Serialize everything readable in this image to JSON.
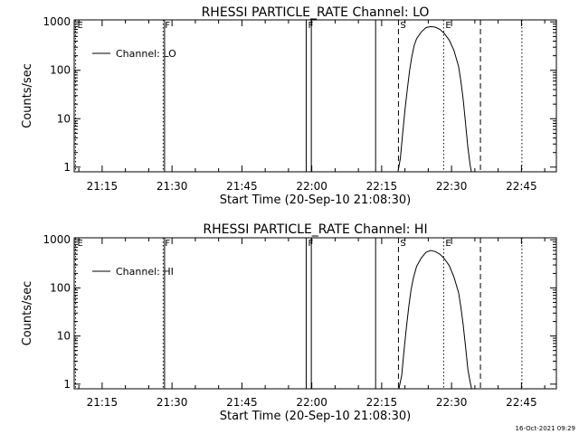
{
  "footer_timestamp": "16-Oct-2021 09:29",
  "chart_data": [
    {
      "type": "line",
      "title": "RHESSI PARTICLE_RATE Channel: LO",
      "xlabel": "Start Time (20-Sep-10 21:08:30)",
      "ylabel": "Counts/sec",
      "y_scale": "log",
      "x_range_min": [
        8.5,
        56.0
      ],
      "ylim": [
        0.8,
        1100
      ],
      "xticks": [
        {
          "v": 14.5,
          "label": "21:15"
        },
        {
          "v": 29.5,
          "label": "21:30"
        },
        {
          "v": 44.5,
          "label": "21:45"
        },
        {
          "v": 59.5,
          "label": "22:00"
        },
        {
          "v": 74.5,
          "label": "22:15"
        },
        {
          "v": 89.5,
          "label": "22:30"
        },
        {
          "v": 104.5,
          "label": "22:45"
        }
      ],
      "yticks": [
        {
          "v": 1,
          "label": "1"
        },
        {
          "v": 10,
          "label": "10"
        },
        {
          "v": 100,
          "label": "100"
        },
        {
          "v": 1000,
          "label": "1000"
        }
      ],
      "legend": {
        "label": "Channel: LO",
        "position": "top-left"
      },
      "markers": [
        {
          "v": 8.8,
          "style": "dotted",
          "label": "E"
        },
        {
          "v": 27.6,
          "style": "dotted",
          "label": "F"
        },
        {
          "v": 27.9,
          "style": "solid",
          "label": ""
        },
        {
          "v": 58.3,
          "style": "solid",
          "label": "F"
        },
        {
          "v": 59.4,
          "style": "solid",
          "label": ""
        },
        {
          "v": 73.2,
          "style": "solid",
          "label": ""
        },
        {
          "v": 78.1,
          "style": "dashed",
          "label": "S"
        },
        {
          "v": 87.8,
          "style": "dotted",
          "label": "E"
        },
        {
          "v": 95.7,
          "style": "dashed",
          "label": ""
        },
        {
          "v": 104.6,
          "style": "dotted",
          "label": ""
        }
      ],
      "series": [
        {
          "name": "Channel: LO",
          "x": [
            78.0,
            78.5,
            79.0,
            79.5,
            80.0,
            80.5,
            81.0,
            81.5,
            82.0,
            83.0,
            84.0,
            85.0,
            86.0,
            87.0,
            88.0,
            89.0,
            90.0,
            91.0,
            91.5,
            92.0,
            92.5,
            93.0,
            93.5,
            93.75
          ],
          "y": [
            0.8,
            1.5,
            5,
            15,
            40,
            100,
            200,
            330,
            450,
            620,
            760,
            800,
            780,
            700,
            570,
            420,
            260,
            120,
            60,
            25,
            8,
            2.5,
            1.1,
            0.8
          ]
        }
      ]
    },
    {
      "type": "line",
      "title": "RHESSI PARTICLE_RATE Channel: HI",
      "xlabel": "Start Time (20-Sep-10 21:08:30)",
      "ylabel": "Counts/sec",
      "y_scale": "log",
      "x_range_min": [
        8.5,
        56.0
      ],
      "ylim": [
        0.8,
        1100
      ],
      "xticks": [
        {
          "v": 14.5,
          "label": "21:15"
        },
        {
          "v": 29.5,
          "label": "21:30"
        },
        {
          "v": 44.5,
          "label": "21:45"
        },
        {
          "v": 59.5,
          "label": "22:00"
        },
        {
          "v": 74.5,
          "label": "22:15"
        },
        {
          "v": 89.5,
          "label": "22:30"
        },
        {
          "v": 104.5,
          "label": "22:45"
        }
      ],
      "yticks": [
        {
          "v": 1,
          "label": "1"
        },
        {
          "v": 10,
          "label": "10"
        },
        {
          "v": 100,
          "label": "100"
        },
        {
          "v": 1000,
          "label": "1000"
        }
      ],
      "legend": {
        "label": "Channel: HI",
        "position": "top-left"
      },
      "markers": [
        {
          "v": 8.8,
          "style": "dotted",
          "label": "E"
        },
        {
          "v": 27.6,
          "style": "dotted",
          "label": "F"
        },
        {
          "v": 27.9,
          "style": "solid",
          "label": ""
        },
        {
          "v": 58.3,
          "style": "solid",
          "label": "F"
        },
        {
          "v": 59.4,
          "style": "solid",
          "label": ""
        },
        {
          "v": 73.2,
          "style": "solid",
          "label": ""
        },
        {
          "v": 78.1,
          "style": "dashed",
          "label": "S"
        },
        {
          "v": 87.8,
          "style": "dotted",
          "label": "E"
        },
        {
          "v": 95.7,
          "style": "dashed",
          "label": ""
        },
        {
          "v": 104.6,
          "style": "dotted",
          "label": ""
        }
      ],
      "series": [
        {
          "name": "Channel: HI",
          "x": [
            78.2,
            78.8,
            79.3,
            79.8,
            80.3,
            80.8,
            81.3,
            82.0,
            83.0,
            84.0,
            85.0,
            86.0,
            87.0,
            88.0,
            89.0,
            90.0,
            91.0,
            91.5,
            92.0,
            92.5,
            93.0,
            93.5,
            93.8
          ],
          "y": [
            0.8,
            1.5,
            5,
            15,
            40,
            90,
            160,
            280,
            420,
            550,
            600,
            570,
            500,
            400,
            290,
            170,
            80,
            40,
            17,
            6,
            2,
            1.1,
            0.8
          ]
        }
      ]
    }
  ]
}
